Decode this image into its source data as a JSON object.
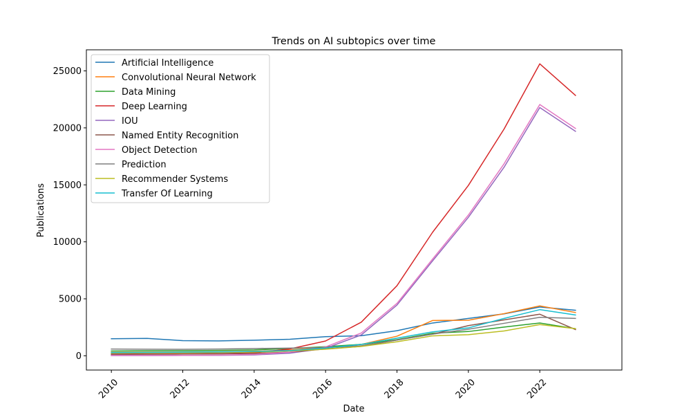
{
  "chart_data": {
    "type": "line",
    "title": "Trends on AI subtopics over time",
    "xlabel": "Date",
    "ylabel": "Publications",
    "x": [
      2010,
      2011,
      2012,
      2013,
      2014,
      2015,
      2016,
      2017,
      2018,
      2019,
      2020,
      2021,
      2022,
      2023
    ],
    "xlim": [
      2009.3,
      2024.3
    ],
    "ylim": [
      -1250,
      26850
    ],
    "xticks": [
      "2010",
      "2012",
      "2014",
      "2016",
      "2018",
      "2020",
      "2022"
    ],
    "yticks": [
      "0",
      "5000",
      "10000",
      "15000",
      "20000",
      "25000"
    ],
    "grid": false,
    "legend_position": "top-left",
    "series": [
      {
        "name": "Artificial Intelligence",
        "color": "#1f77b4",
        "values": [
          1500,
          1530,
          1330,
          1310,
          1370,
          1450,
          1680,
          1760,
          2200,
          2880,
          3280,
          3680,
          4280,
          4000
        ]
      },
      {
        "name": "Convolutional Neural Network",
        "color": "#ff7f0e",
        "values": [
          300,
          320,
          330,
          350,
          400,
          500,
          740,
          1000,
          1720,
          3100,
          3120,
          3700,
          4380,
          3800
        ]
      },
      {
        "name": "Data Mining",
        "color": "#2ca02c",
        "values": [
          420,
          440,
          450,
          470,
          520,
          640,
          800,
          1000,
          1420,
          1980,
          2130,
          2520,
          2880,
          2380
        ]
      },
      {
        "name": "Deep Learning",
        "color": "#d62728",
        "values": [
          150,
          160,
          180,
          190,
          260,
          600,
          1300,
          2950,
          6150,
          10850,
          14950,
          19900,
          25620,
          22850
        ]
      },
      {
        "name": "IOU",
        "color": "#9467bd",
        "values": [
          20,
          20,
          30,
          40,
          80,
          230,
          660,
          1830,
          4450,
          8340,
          12150,
          16550,
          21780,
          19700
        ]
      },
      {
        "name": "Named Entity Recognition",
        "color": "#8c564b",
        "values": [
          120,
          140,
          150,
          170,
          210,
          320,
          600,
          830,
          1380,
          1900,
          2650,
          3150,
          3650,
          2300
        ]
      },
      {
        "name": "Object Detection",
        "color": "#e377c2",
        "values": [
          30,
          30,
          40,
          60,
          120,
          320,
          780,
          2000,
          4600,
          8500,
          12350,
          16850,
          22050,
          19950
        ]
      },
      {
        "name": "Prediction",
        "color": "#7f7f7f",
        "values": [
          590,
          580,
          570,
          590,
          640,
          680,
          720,
          880,
          1380,
          1900,
          2330,
          2850,
          3380,
          3280
        ]
      },
      {
        "name": "Recommender Systems",
        "color": "#bcbd22",
        "values": [
          240,
          260,
          270,
          290,
          330,
          420,
          580,
          820,
          1230,
          1750,
          1850,
          2180,
          2740,
          2380
        ]
      },
      {
        "name": "Transfer Of Learning",
        "color": "#17becf",
        "values": [
          280,
          300,
          320,
          340,
          380,
          460,
          680,
          1000,
          1550,
          2100,
          2450,
          3280,
          4050,
          3580
        ]
      }
    ]
  }
}
